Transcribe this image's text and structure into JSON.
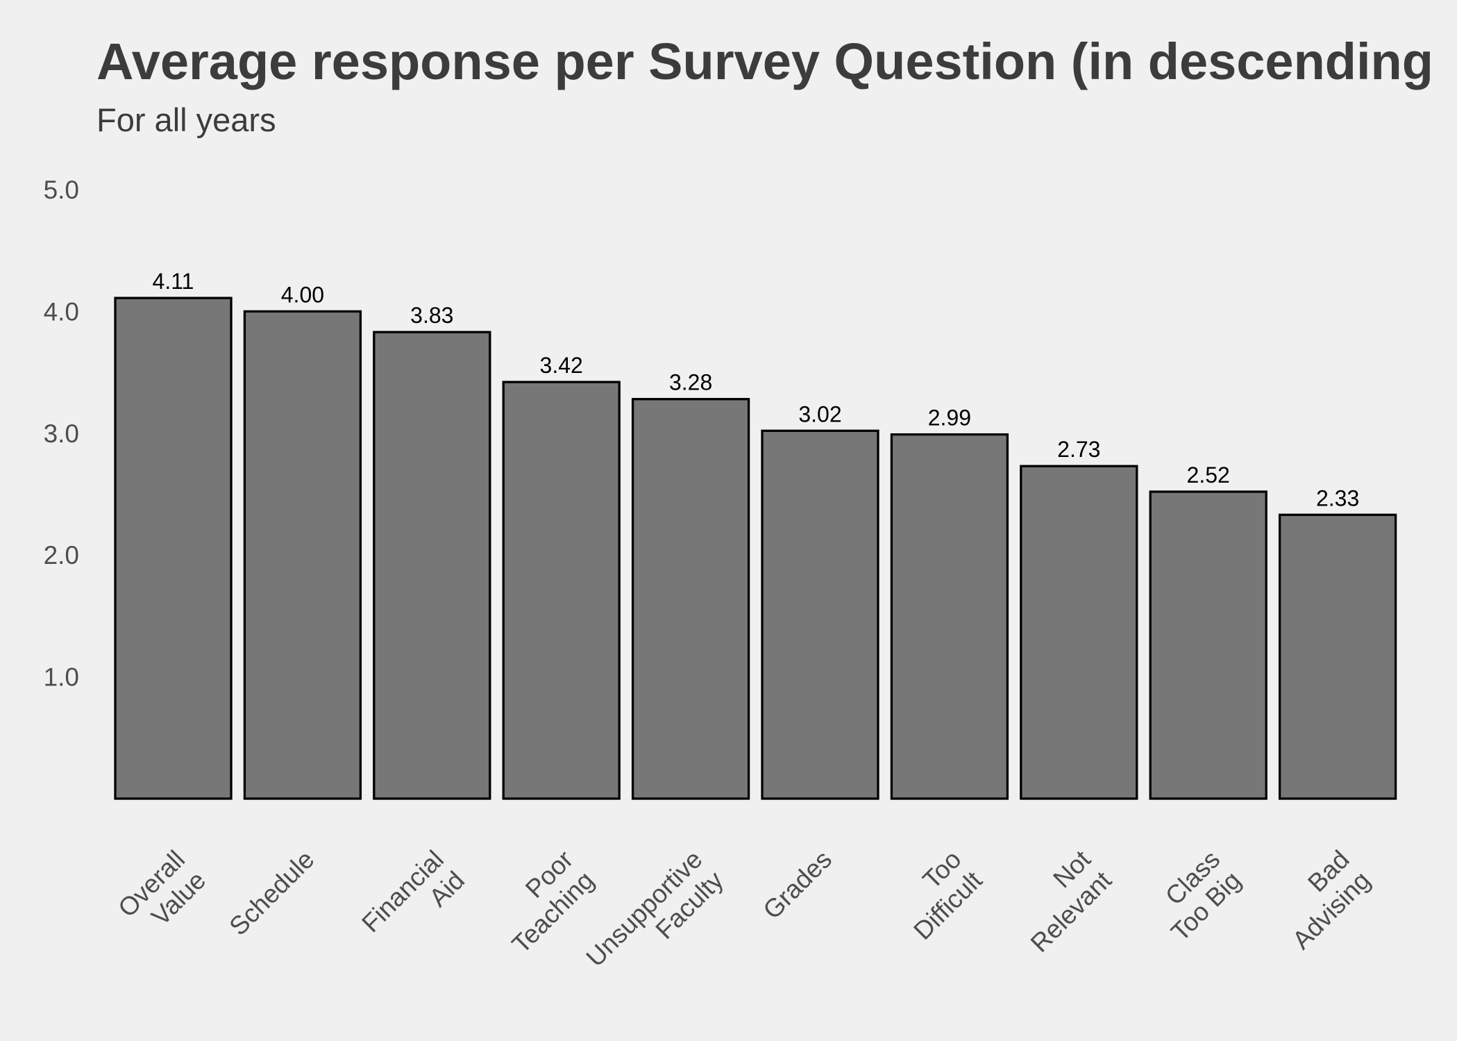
{
  "chart_data": {
    "type": "bar",
    "title": "Average response per Survey Question (in descending",
    "subtitle": "For all years",
    "xlabel": "",
    "ylabel": "",
    "categories": [
      [
        "Overall",
        "Value"
      ],
      [
        "Schedule"
      ],
      [
        "Financial",
        "Aid"
      ],
      [
        "Poor",
        "Teaching"
      ],
      [
        "Unsupportive",
        "Faculty"
      ],
      [
        "Grades"
      ],
      [
        "Too",
        "Difficult"
      ],
      [
        "Not",
        "Relevant"
      ],
      [
        "Class",
        "Too Big"
      ],
      [
        "Bad",
        "Advising"
      ]
    ],
    "values": [
      4.11,
      4.0,
      3.83,
      3.42,
      3.28,
      3.02,
      2.99,
      2.73,
      2.52,
      2.33
    ],
    "data_labels": [
      "4.11",
      "4.00",
      "3.83",
      "3.42",
      "3.28",
      "3.02",
      "2.99",
      "2.73",
      "2.52",
      "2.33"
    ],
    "ylim": [
      0,
      5
    ],
    "y_ticks": [
      1,
      2,
      3,
      4,
      5
    ],
    "y_tick_labels": [
      "1.0",
      "2.0",
      "3.0",
      "4.0",
      "5.0"
    ],
    "grid": false,
    "legend": "none",
    "colors": {
      "background": "#f0f0f0",
      "title": "#3c3c3c",
      "axis_text": "#4d4d4d",
      "bar_fill": "#777777",
      "bar_stroke": "#000000",
      "data_label": "#000000"
    }
  }
}
